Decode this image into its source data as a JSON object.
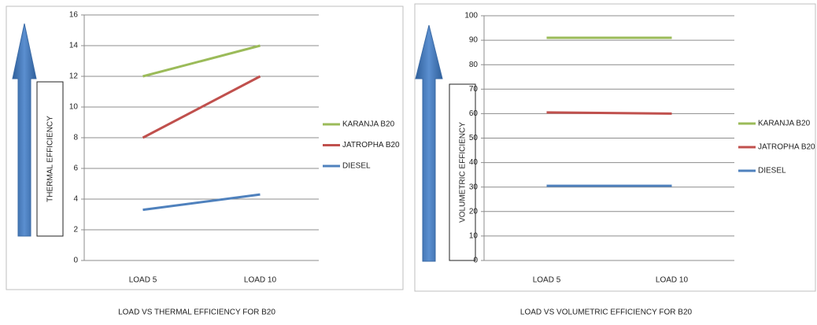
{
  "chart_data": [
    {
      "type": "line",
      "title": "LOAD VS THERMAL EFFICIENCY FOR B20",
      "y_label": "THERMAL EFFICIENCY",
      "categories": [
        "LOAD 5",
        "LOAD 10"
      ],
      "series": [
        {
          "name": "KARANJA B20",
          "color": "#9bbb59",
          "values": [
            12,
            14
          ]
        },
        {
          "name": "JATROPHA B20",
          "color": "#c0504d",
          "values": [
            8,
            12
          ]
        },
        {
          "name": "DIESEL",
          "color": "#4f81bd",
          "values": [
            3.3,
            4.3
          ]
        }
      ],
      "ylim": [
        0,
        16
      ],
      "yticks": [
        0,
        2,
        4,
        6,
        8,
        10,
        12,
        14,
        16
      ],
      "grid": true,
      "legend": "right"
    },
    {
      "type": "line",
      "title": "LOAD VS VOLUMETRIC EFFICIENCY FOR B20",
      "y_label": "VOLUMETRIC EFFICIENCY",
      "categories": [
        "LOAD 5",
        "LOAD 10"
      ],
      "series": [
        {
          "name": "KARANJA B20",
          "color": "#9bbb59",
          "values": [
            91,
            91
          ]
        },
        {
          "name": "JATROPHA B20",
          "color": "#c0504d",
          "values": [
            60.5,
            60
          ]
        },
        {
          "name": "DIESEL",
          "color": "#4f81bd",
          "values": [
            30.5,
            30.5
          ]
        }
      ],
      "ylim": [
        0,
        100
      ],
      "yticks": [
        0,
        10,
        20,
        30,
        40,
        50,
        60,
        70,
        80,
        90,
        100
      ],
      "grid": true,
      "legend": "right"
    }
  ]
}
